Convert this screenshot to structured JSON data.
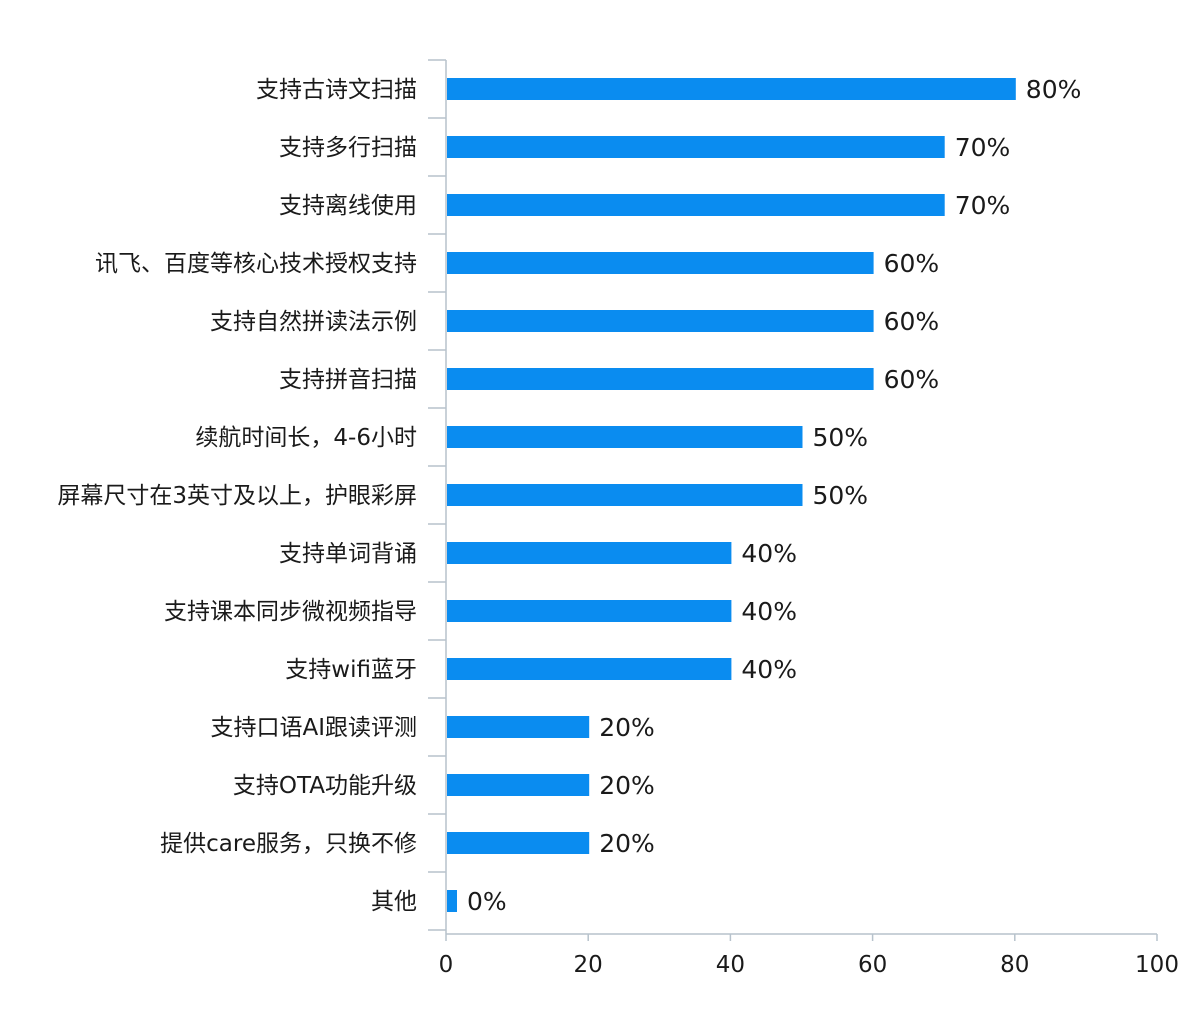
{
  "chart_data": {
    "type": "bar",
    "orientation": "horizontal",
    "categories": [
      "支持古诗文扫描",
      "支持多行扫描",
      "支持离线使用",
      "讯飞、百度等核心技术授权支持",
      "支持自然拼读法示例",
      "支持拼音扫描",
      "续航时间长，4-6小时",
      "屏幕尺寸在3英寸及以上，护眼彩屏",
      "支持单词背诵",
      "支持课本同步微视频指导",
      "支持wifi蓝牙",
      "支持口语AI跟读评测",
      "支持OTA功能升级",
      "提供care服务，只换不修",
      "其他"
    ],
    "values": [
      80,
      70,
      70,
      60,
      60,
      60,
      50,
      50,
      40,
      40,
      40,
      20,
      20,
      20,
      0
    ],
    "value_labels": [
      "80%",
      "70%",
      "70%",
      "60%",
      "60%",
      "60%",
      "50%",
      "50%",
      "40%",
      "40%",
      "40%",
      "20%",
      "20%",
      "20%",
      "0%"
    ],
    "xlim": [
      0,
      100
    ],
    "xticks": [
      "0",
      "20",
      "40",
      "60",
      "80",
      "100"
    ],
    "title": "",
    "xlabel": "",
    "ylabel": "",
    "grid": false,
    "legend": "none",
    "colors": {
      "bar": "#0a8cf0",
      "axis": "#b7c2cc",
      "text": "#1a1a1a",
      "background": "#ffffff"
    }
  }
}
